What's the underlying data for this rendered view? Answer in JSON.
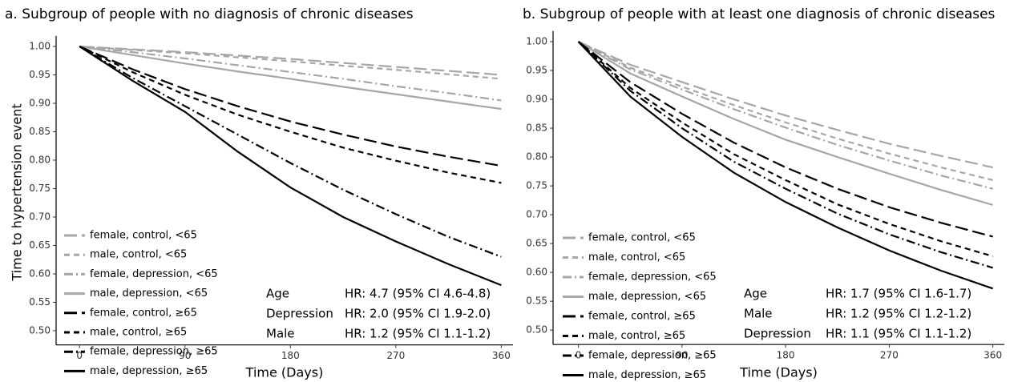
{
  "chart_data": [
    {
      "type": "line",
      "title": "a. Subgroup of people with no diagnosis of chronic diseases",
      "xlabel": "Time (Days)",
      "ylabel": "Time to hypertension event",
      "x": [
        0,
        45,
        90,
        135,
        180,
        225,
        270,
        315,
        360
      ],
      "xlim": [
        -20,
        370
      ],
      "xticks": [
        0,
        90,
        180,
        270,
        360
      ],
      "ylim": [
        0.475,
        1.01
      ],
      "yticks": [
        {
          "value": 0.5,
          "label": "0.50"
        },
        0.55,
        {
          "value": 0.6,
          "label": "0.60"
        },
        0.65,
        {
          "value": 0.7,
          "label": "0.70"
        },
        0.75,
        {
          "value": 0.8,
          "label": "0.80"
        },
        0.85,
        {
          "value": 0.9,
          "label": "0.90"
        },
        0.95,
        {
          "value": 1,
          "label": "1.00"
        }
      ],
      "legend": "lower left",
      "series": [
        {
          "name": "female, control, <65",
          "color": "#a6a6a6",
          "linestyle": "longdash",
          "values": [
            1,
            0.995,
            0.99,
            0.984,
            0.978,
            0.971,
            0.964,
            0.957,
            0.95
          ]
        },
        {
          "name": "male, control, <65",
          "color": "#a6a6a6",
          "linestyle": "dashed",
          "values": [
            1,
            0.994,
            0.988,
            0.981,
            0.974,
            0.966,
            0.959,
            0.951,
            0.943
          ]
        },
        {
          "name": "female, depression, <65",
          "color": "#a6a6a6",
          "linestyle": "dashdot",
          "values": [
            1,
            0.99,
            0.979,
            0.967,
            0.955,
            0.943,
            0.93,
            0.918,
            0.905
          ]
        },
        {
          "name": "male, depression, <65",
          "color": "#a6a6a6",
          "linestyle": "solid",
          "values": [
            1,
            0.985,
            0.97,
            0.956,
            0.943,
            0.929,
            0.916,
            0.903,
            0.89
          ]
        },
        {
          "name": "female, control, ≥65",
          "color": "#000000",
          "linestyle": "longdash",
          "values": [
            1,
            0.96,
            0.925,
            0.895,
            0.868,
            0.845,
            0.824,
            0.806,
            0.79
          ]
        },
        {
          "name": "male, control, ≥65",
          "color": "#000000",
          "linestyle": "dashed",
          "values": [
            1,
            0.955,
            0.915,
            0.88,
            0.85,
            0.822,
            0.799,
            0.778,
            0.76
          ]
        },
        {
          "name": "female, depression, ≥65",
          "color": "#000000",
          "linestyle": "dashdot",
          "values": [
            1,
            0.945,
            0.895,
            0.845,
            0.795,
            0.748,
            0.705,
            0.665,
            0.63
          ]
        },
        {
          "name": "male, depression, ≥65",
          "color": "#000000",
          "linestyle": "solid",
          "values": [
            1,
            0.94,
            0.885,
            0.815,
            0.752,
            0.7,
            0.657,
            0.617,
            0.58
          ]
        }
      ],
      "annotations": [
        {
          "label": "Age",
          "text": "HR: 4.7 (95% CI 4.6-4.8)"
        },
        {
          "label": "Depression",
          "text": "HR: 2.0 (95% CI 1.9-2.0)"
        },
        {
          "label": "Male",
          "text": "HR: 1.2 (95% CI 1.1-1.2)"
        }
      ]
    },
    {
      "type": "line",
      "title": "b. Subgroup of people with at least one diagnosis of chronic diseases",
      "xlabel": "Time (Days)",
      "x": [
        0,
        45,
        90,
        135,
        180,
        225,
        270,
        315,
        360
      ],
      "xlim": [
        -22,
        370
      ],
      "xticks": [
        0,
        90,
        180,
        270,
        360
      ],
      "ylim": [
        0.475,
        1.01
      ],
      "yticks": [
        {
          "value": 0.5,
          "label": "0.50"
        },
        0.55,
        {
          "value": 0.6,
          "label": "0.60"
        },
        0.65,
        {
          "value": 0.7,
          "label": "0.70"
        },
        0.75,
        {
          "value": 0.8,
          "label": "0.80"
        },
        0.85,
        {
          "value": 0.9,
          "label": "0.90"
        },
        0.95,
        {
          "value": 1,
          "label": "1.00"
        }
      ],
      "legend": "lower left",
      "series": [
        {
          "name": "female, control, <65",
          "color": "#a6a6a6",
          "linestyle": "longdash",
          "values": [
            1,
            0.96,
            0.93,
            0.9,
            0.872,
            0.847,
            0.823,
            0.802,
            0.782
          ]
        },
        {
          "name": "male, control, <65",
          "color": "#a6a6a6",
          "linestyle": "dashed",
          "values": [
            1,
            0.955,
            0.922,
            0.89,
            0.86,
            0.832,
            0.806,
            0.782,
            0.76
          ]
        },
        {
          "name": "female, depression, <65",
          "color": "#a6a6a6",
          "linestyle": "dashdot",
          "values": [
            1,
            0.952,
            0.917,
            0.883,
            0.851,
            0.821,
            0.794,
            0.768,
            0.745
          ]
        },
        {
          "name": "male, depression, <65",
          "color": "#a6a6a6",
          "linestyle": "solid",
          "values": [
            1,
            0.945,
            0.905,
            0.866,
            0.83,
            0.8,
            0.771,
            0.743,
            0.717
          ]
        },
        {
          "name": "female, control, ≥65",
          "color": "#000000",
          "linestyle": "longdash",
          "values": [
            1,
            0.93,
            0.875,
            0.825,
            0.782,
            0.745,
            0.713,
            0.686,
            0.662
          ]
        },
        {
          "name": "male, control, ≥65",
          "color": "#000000",
          "linestyle": "dashed",
          "values": [
            1,
            0.92,
            0.86,
            0.805,
            0.76,
            0.718,
            0.684,
            0.654,
            0.628
          ]
        },
        {
          "name": "female, depression, ≥65",
          "color": "#000000",
          "linestyle": "dashdot",
          "values": [
            1,
            0.915,
            0.85,
            0.792,
            0.745,
            0.702,
            0.666,
            0.635,
            0.608
          ]
        },
        {
          "name": "male, depression, ≥65",
          "color": "#000000",
          "linestyle": "solid",
          "values": [
            1,
            0.905,
            0.835,
            0.773,
            0.722,
            0.678,
            0.638,
            0.603,
            0.572
          ]
        }
      ],
      "annotations": [
        {
          "label": "Age",
          "text": "HR: 1.7 (95% CI 1.6-1.7)"
        },
        {
          "label": "Male",
          "text": "HR: 1.2 (95% CI 1.2-1.2)"
        },
        {
          "label": "Depression",
          "text": "HR: 1.1 (95% CI 1.1-1.2)"
        }
      ]
    }
  ]
}
